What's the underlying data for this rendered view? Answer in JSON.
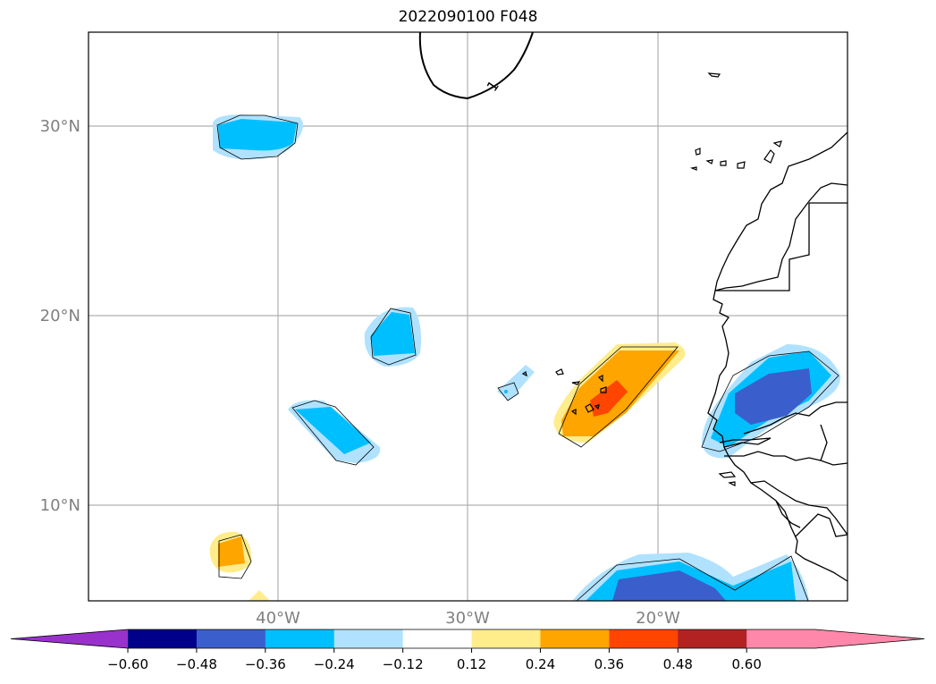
{
  "title": "2022090100 F048",
  "map": {
    "lat_labels": [
      "30°N",
      "20°N",
      "10°N"
    ],
    "lon_labels": [
      "40°W",
      "30°W",
      "20°W"
    ],
    "contour_label": "1",
    "grid": true
  },
  "colorbar": {
    "labels": [
      "−0.60",
      "−0.48",
      "−0.36",
      "−0.24",
      "−0.12",
      "0.12",
      "0.24",
      "0.36",
      "0.48",
      "0.60"
    ],
    "colors": [
      "#9932cc",
      "#00008b",
      "#3a5fcd",
      "#00bfff",
      "#b0e2ff",
      "#ffffff",
      "#ffec8b",
      "#ffa500",
      "#ff4500",
      "#b22222",
      "#ff88aa",
      "#ff88aa"
    ],
    "extend": "both"
  }
}
